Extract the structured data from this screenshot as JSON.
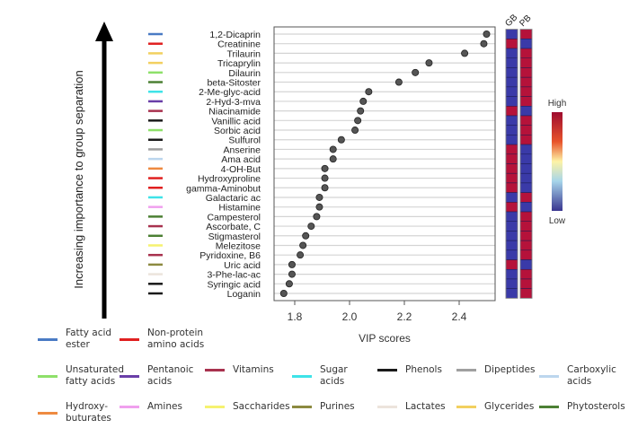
{
  "chart_data": {
    "type": "scatter",
    "title": "",
    "xlabel": "VIP scores",
    "ylabel": "Increasing importance to group separation",
    "xlim": [
      1.74,
      2.53
    ],
    "xticks": [
      1.8,
      2.0,
      2.2,
      2.4
    ],
    "xtick_labels": [
      "1.8",
      "2.0",
      "2.2",
      "2.4"
    ],
    "grid": "horizontal",
    "heatmap_columns": [
      "GB",
      "PB"
    ],
    "colorbar": {
      "high_label": "High",
      "low_label": "Low"
    },
    "points": [
      {
        "name": "1,2-Dicaprin",
        "vip": 2.5,
        "class": "Fatty acid ester",
        "GB": "low",
        "PB": "high"
      },
      {
        "name": "Creatinine",
        "vip": 2.49,
        "class": "Non-protein amino acids",
        "GB": "high",
        "PB": "low"
      },
      {
        "name": "Trilaurin",
        "vip": 2.42,
        "class": "Glycerides",
        "GB": "low",
        "PB": "high"
      },
      {
        "name": "Tricaprylin",
        "vip": 2.29,
        "class": "Glycerides",
        "GB": "low",
        "PB": "high"
      },
      {
        "name": "Dilaurin",
        "vip": 2.24,
        "class": "Unsaturated fatty acids",
        "GB": "low",
        "PB": "high"
      },
      {
        "name": "beta-Sitoster",
        "vip": 2.18,
        "class": "Phytosterols",
        "GB": "low",
        "PB": "high"
      },
      {
        "name": "2-Me-glyc-acid",
        "vip": 2.07,
        "class": "Sugar acids",
        "GB": "low",
        "PB": "high"
      },
      {
        "name": "2-Hyd-3-mva",
        "vip": 2.05,
        "class": "Pentanoic acids",
        "GB": "low",
        "PB": "high"
      },
      {
        "name": "Niacinamide",
        "vip": 2.04,
        "class": "Vitamins",
        "GB": "high",
        "PB": "low"
      },
      {
        "name": "Vanillic acid",
        "vip": 2.03,
        "class": "Phenols",
        "GB": "low",
        "PB": "high"
      },
      {
        "name": "Sorbic acid",
        "vip": 2.02,
        "class": "Unsaturated fatty acids",
        "GB": "low",
        "PB": "high"
      },
      {
        "name": "Sulfurol",
        "vip": 1.97,
        "class": "Phenols",
        "GB": "low",
        "PB": "high"
      },
      {
        "name": "Anserine",
        "vip": 1.94,
        "class": "Dipeptides",
        "GB": "high",
        "PB": "low"
      },
      {
        "name": "Ama acid",
        "vip": 1.94,
        "class": "Carboxylic acids",
        "GB": "high",
        "PB": "low"
      },
      {
        "name": "4-OH-But",
        "vip": 1.91,
        "class": "Hydroxy-buturates",
        "GB": "high",
        "PB": "low"
      },
      {
        "name": "Hydroxyproline",
        "vip": 1.91,
        "class": "Non-protein amino acids",
        "GB": "high",
        "PB": "low"
      },
      {
        "name": "gamma-Aminobut",
        "vip": 1.91,
        "class": "Non-protein amino acids",
        "GB": "high",
        "PB": "low"
      },
      {
        "name": "Galactaric ac",
        "vip": 1.89,
        "class": "Sugar acids",
        "GB": "low",
        "PB": "high"
      },
      {
        "name": "Histamine",
        "vip": 1.89,
        "class": "Amines",
        "GB": "high",
        "PB": "low"
      },
      {
        "name": "Campesterol",
        "vip": 1.88,
        "class": "Phytosterols",
        "GB": "low",
        "PB": "high"
      },
      {
        "name": "Ascorbate, C",
        "vip": 1.86,
        "class": "Vitamins",
        "GB": "low",
        "PB": "high"
      },
      {
        "name": "Stigmasterol",
        "vip": 1.84,
        "class": "Phytosterols",
        "GB": "low",
        "PB": "high"
      },
      {
        "name": "Melezitose",
        "vip": 1.83,
        "class": "Saccharides",
        "GB": "low",
        "PB": "high"
      },
      {
        "name": "Pyridoxine, B6",
        "vip": 1.82,
        "class": "Vitamins",
        "GB": "low",
        "PB": "high"
      },
      {
        "name": "Uric acid",
        "vip": 1.79,
        "class": "Purines",
        "GB": "high",
        "PB": "low"
      },
      {
        "name": "3-Phe-lac-ac",
        "vip": 1.79,
        "class": "Lactates",
        "GB": "low",
        "PB": "high"
      },
      {
        "name": "Syringic acid",
        "vip": 1.78,
        "class": "Phenols",
        "GB": "low",
        "PB": "high"
      },
      {
        "name": "Loganin",
        "vip": 1.76,
        "class": "Phenols",
        "GB": "low",
        "PB": "high"
      }
    ],
    "legend": [
      {
        "label": "Fatty acid\nester",
        "color": "#4a7bc4"
      },
      {
        "label": "Non-protein\namino acids",
        "color": "#e02020"
      },
      {
        "label": "Unsaturated\nfatty acids",
        "color": "#8ee06a"
      },
      {
        "label": "Pentanoic\nacids",
        "color": "#6a3fa8"
      },
      {
        "label": "Vitamins",
        "color": "#a8324e"
      },
      {
        "label": "Sugar\nacids",
        "color": "#3ee3e8"
      },
      {
        "label": "Phenols",
        "color": "#1a1a1a"
      },
      {
        "label": "Dipeptides",
        "color": "#a0a0a0"
      },
      {
        "label": "Carboxylic\nacids",
        "color": "#bcd6ee"
      },
      {
        "label": "Hydroxy-\nbuturates",
        "color": "#ee8a40"
      },
      {
        "label": "Amines",
        "color": "#f0a0ee"
      },
      {
        "label": "Saccharides",
        "color": "#f6f270"
      },
      {
        "label": "Purines",
        "color": "#8c8a40"
      },
      {
        "label": "Lactates",
        "color": "#ece4dc"
      },
      {
        "label": "Glycerides",
        "color": "#f2d060"
      },
      {
        "label": "Phytosterols",
        "color": "#4c8034"
      }
    ],
    "colors": {
      "high": "#b5123a",
      "low": "#3a3aa8",
      "point": "#555555"
    }
  }
}
